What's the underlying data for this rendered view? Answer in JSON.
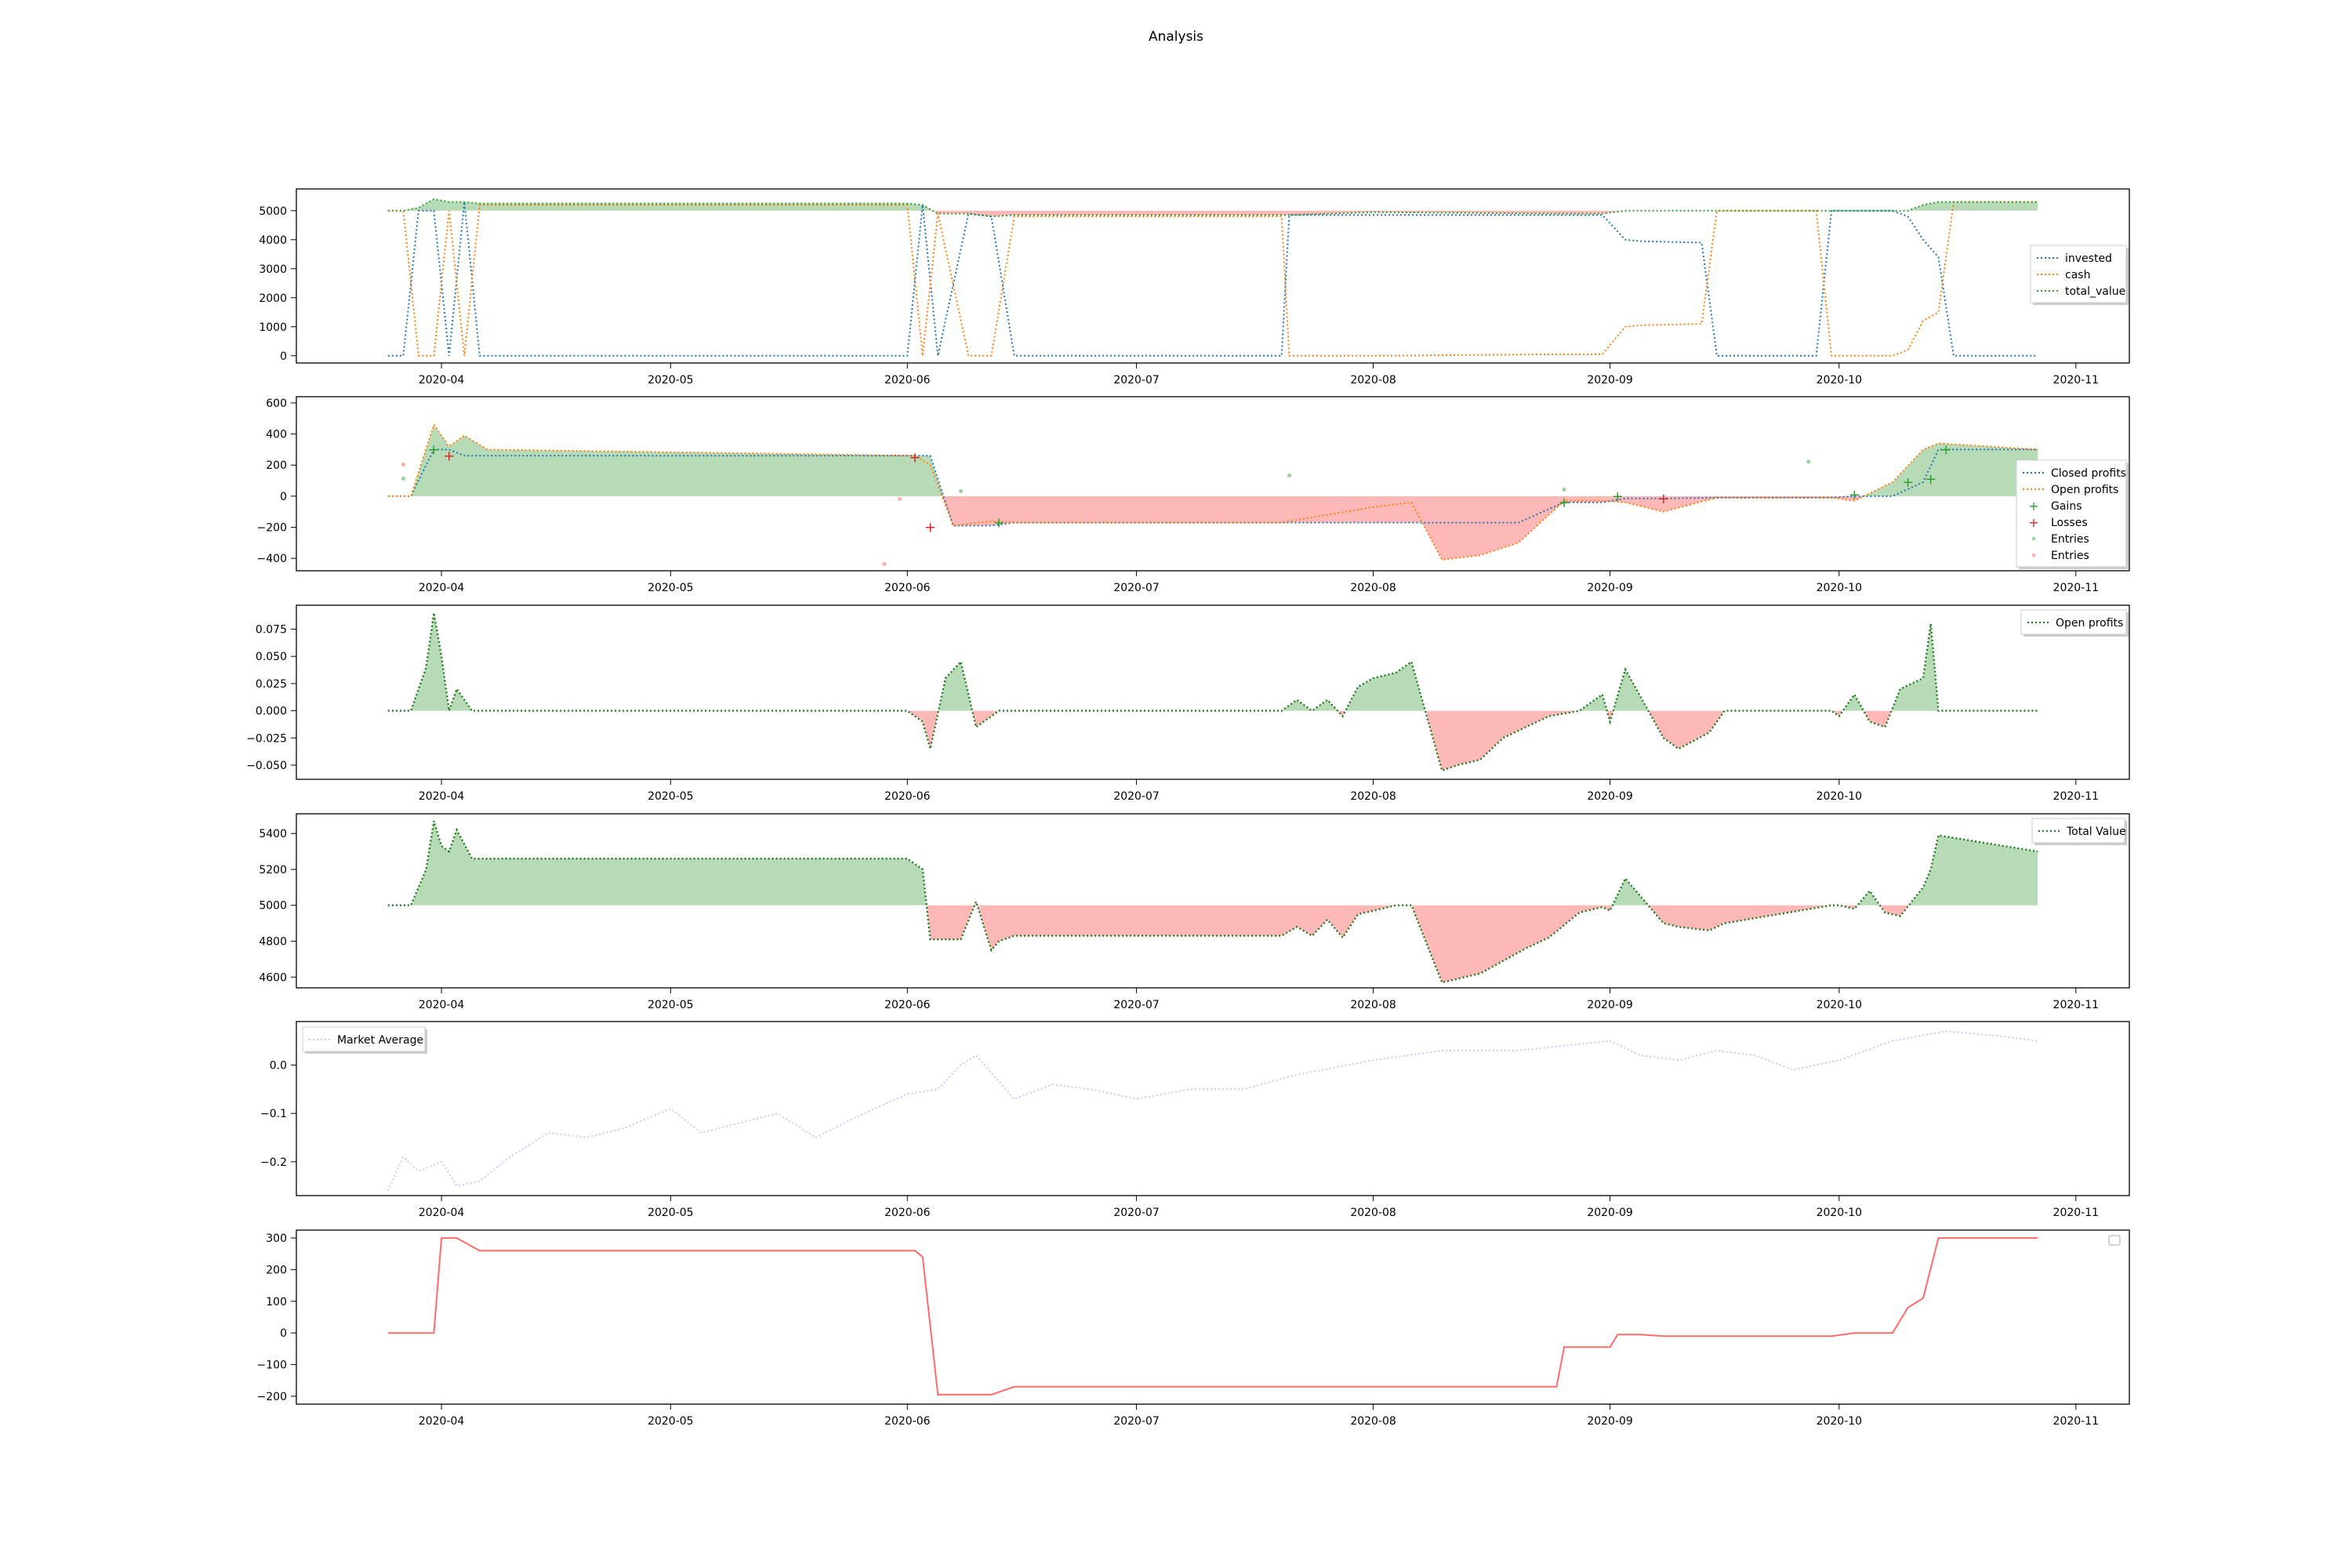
{
  "figure": {
    "title": "Analysis"
  },
  "x_ticks": [
    "2020-04",
    "2020-05",
    "2020-06",
    "2020-07",
    "2020-08",
    "2020-09",
    "2020-10",
    "2020-11"
  ],
  "colors": {
    "blue": "#1f77b4",
    "orange": "#ff7f0e",
    "green": "#2ca02c",
    "red": "#d62728",
    "fill_green": "#b7dbb7",
    "fill_red": "#ffb8b8",
    "market": "#c8c8ff",
    "steps": "#ff6b6b"
  },
  "chart_data": [
    {
      "type": "line",
      "panel": 1,
      "x": [
        "2020-03-25",
        "2020-03-27",
        "2020-03-29",
        "2020-03-31",
        "2020-04-02",
        "2020-04-04",
        "2020-04-06",
        "2020-05-01",
        "2020-06-01",
        "2020-06-03",
        "2020-06-05",
        "2020-06-09",
        "2020-06-12",
        "2020-06-15",
        "2020-07-20",
        "2020-07-21",
        "2020-08-01",
        "2020-08-25",
        "2020-08-31",
        "2020-09-03",
        "2020-09-05",
        "2020-09-13",
        "2020-09-15",
        "2020-09-28",
        "2020-09-30",
        "2020-10-08",
        "2020-10-10",
        "2020-10-12",
        "2020-10-14",
        "2020-10-16",
        "2020-10-27"
      ],
      "series": [
        {
          "name": "invested",
          "values": [
            0,
            0,
            5000,
            5000,
            0,
            5300,
            0,
            0,
            0,
            5200,
            0,
            4900,
            4800,
            0,
            0,
            4850,
            4850,
            4850,
            4850,
            4000,
            3950,
            3900,
            0,
            0,
            5000,
            5000,
            4800,
            4000,
            3400,
            0,
            0
          ]
        },
        {
          "name": "cash",
          "values": [
            5000,
            5000,
            0,
            0,
            5000,
            0,
            5200,
            5200,
            5200,
            0,
            4900,
            0,
            0,
            4800,
            4800,
            0,
            0,
            50,
            50,
            1000,
            1050,
            1100,
            5000,
            5000,
            0,
            0,
            200,
            1200,
            1500,
            5300,
            5300
          ]
        },
        {
          "name": "total_value",
          "values": [
            5000,
            5000,
            5100,
            5400,
            5300,
            5300,
            5250,
            5250,
            5250,
            5200,
            4900,
            4900,
            4800,
            4850,
            4850,
            4850,
            4950,
            4900,
            4900,
            5000,
            5000,
            5000,
            5000,
            5000,
            5000,
            5000,
            5000,
            5200,
            5300,
            5300,
            5300
          ]
        }
      ],
      "ylim": [
        -250,
        5750
      ],
      "yticks": [
        0,
        1000,
        2000,
        3000,
        4000,
        5000
      ],
      "legend_position": "center-right"
    },
    {
      "type": "line",
      "panel": 2,
      "x": [
        "2020-03-25",
        "2020-03-28",
        "2020-03-31",
        "2020-04-02",
        "2020-04-04",
        "2020-04-07",
        "2020-06-02",
        "2020-06-04",
        "2020-06-07",
        "2020-06-12",
        "2020-06-15",
        "2020-07-20",
        "2020-08-01",
        "2020-08-06",
        "2020-08-10",
        "2020-08-15",
        "2020-08-20",
        "2020-08-26",
        "2020-08-31",
        "2020-09-03",
        "2020-09-08",
        "2020-09-15",
        "2020-09-30",
        "2020-10-03",
        "2020-10-08",
        "2020-10-12",
        "2020-10-14",
        "2020-10-27"
      ],
      "series": [
        {
          "name": "Closed profits",
          "values": [
            0,
            0,
            300,
            300,
            260,
            260,
            260,
            260,
            -190,
            -190,
            -170,
            -170,
            -170,
            -170,
            -170,
            -170,
            -170,
            -40,
            -40,
            -15,
            -15,
            -10,
            -10,
            0,
            0,
            90,
            300,
            300
          ]
        },
        {
          "name": "Open profits",
          "values": [
            0,
            0,
            460,
            320,
            390,
            300,
            260,
            200,
            -190,
            -160,
            -170,
            -170,
            -70,
            -40,
            -410,
            -380,
            -300,
            -30,
            -30,
            -40,
            -100,
            -10,
            -10,
            -30,
            90,
            300,
            340,
            300
          ]
        }
      ],
      "markers": [
        {
          "name": "Gains",
          "x": [
            "2020-03-31",
            "2020-06-13",
            "2020-08-26",
            "2020-09-02",
            "2020-10-03",
            "2020-10-10",
            "2020-10-13",
            "2020-10-15"
          ],
          "y": [
            300,
            -170,
            -40,
            0,
            10,
            90,
            110,
            300
          ]
        },
        {
          "name": "Losses",
          "x": [
            "2020-04-02",
            "2020-06-02",
            "2020-06-04",
            "2020-09-08"
          ],
          "y": [
            260,
            250,
            -200,
            -15
          ]
        },
        {
          "name": "Entries",
          "x": [
            "2020-03-27",
            "2020-06-08",
            "2020-07-21",
            "2020-08-26",
            "2020-09-27"
          ],
          "y": [
            110,
            30,
            130,
            40,
            220
          ]
        },
        {
          "name": "Entries",
          "x": [
            "2020-03-27",
            "2020-05-29",
            "2020-05-31"
          ],
          "y": [
            200,
            -440,
            -20
          ]
        }
      ],
      "ylim": [
        -480,
        640
      ],
      "yticks": [
        -400,
        -200,
        0,
        200,
        400,
        600
      ],
      "legend_position": "lower-right"
    },
    {
      "type": "area",
      "panel": 3,
      "x": [
        "2020-03-25",
        "2020-03-28",
        "2020-03-30",
        "2020-03-31",
        "2020-04-01",
        "2020-04-02",
        "2020-04-03",
        "2020-04-05",
        "2020-06-01",
        "2020-06-03",
        "2020-06-04",
        "2020-06-06",
        "2020-06-08",
        "2020-06-10",
        "2020-06-12",
        "2020-06-13",
        "2020-06-15",
        "2020-07-20",
        "2020-07-22",
        "2020-07-24",
        "2020-07-26",
        "2020-07-28",
        "2020-07-30",
        "2020-08-01",
        "2020-08-04",
        "2020-08-06",
        "2020-08-10",
        "2020-08-12",
        "2020-08-15",
        "2020-08-18",
        "2020-08-21",
        "2020-08-24",
        "2020-08-28",
        "2020-08-31",
        "2020-09-01",
        "2020-09-03",
        "2020-09-08",
        "2020-09-10",
        "2020-09-14",
        "2020-09-16",
        "2020-09-30",
        "2020-10-01",
        "2020-10-03",
        "2020-10-05",
        "2020-10-07",
        "2020-10-09",
        "2020-10-12",
        "2020-10-13",
        "2020-10-14",
        "2020-10-27"
      ],
      "series": [
        {
          "name": "Open profits",
          "values": [
            0,
            0,
            0.04,
            0.09,
            0.05,
            0,
            0.02,
            0,
            0,
            -0.01,
            -0.035,
            0.03,
            0.045,
            -0.015,
            -0.005,
            0,
            0,
            0,
            0.01,
            0,
            0.01,
            -0.005,
            0.022,
            0.03,
            0.035,
            0.045,
            -0.055,
            -0.05,
            -0.045,
            -0.025,
            -0.015,
            -0.005,
            0,
            0.015,
            -0.01,
            0.038,
            -0.025,
            -0.035,
            -0.02,
            0,
            0,
            -0.005,
            0.015,
            -0.01,
            -0.015,
            0.02,
            0.03,
            0.08,
            0,
            0
          ]
        }
      ],
      "ylim": [
        -0.063,
        0.097
      ],
      "yticks": [
        -0.05,
        -0.025,
        0.0,
        0.025,
        0.05,
        0.075
      ],
      "legend_position": "upper-right"
    },
    {
      "type": "area",
      "panel": 4,
      "x": [
        "2020-03-25",
        "2020-03-28",
        "2020-03-30",
        "2020-03-31",
        "2020-04-01",
        "2020-04-02",
        "2020-04-03",
        "2020-04-05",
        "2020-06-01",
        "2020-06-03",
        "2020-06-04",
        "2020-06-08",
        "2020-06-10",
        "2020-06-12",
        "2020-06-13",
        "2020-06-15",
        "2020-07-20",
        "2020-07-22",
        "2020-07-24",
        "2020-07-26",
        "2020-07-28",
        "2020-07-30",
        "2020-08-01",
        "2020-08-04",
        "2020-08-06",
        "2020-08-10",
        "2020-08-12",
        "2020-08-15",
        "2020-08-18",
        "2020-08-21",
        "2020-08-24",
        "2020-08-28",
        "2020-08-31",
        "2020-09-01",
        "2020-09-03",
        "2020-09-08",
        "2020-09-10",
        "2020-09-14",
        "2020-09-16",
        "2020-09-30",
        "2020-10-01",
        "2020-10-03",
        "2020-10-05",
        "2020-10-07",
        "2020-10-09",
        "2020-10-12",
        "2020-10-13",
        "2020-10-14",
        "2020-10-27"
      ],
      "series": [
        {
          "name": "Total Value",
          "values": [
            5000,
            5000,
            5200,
            5470,
            5330,
            5300,
            5420,
            5260,
            5260,
            5200,
            4810,
            4810,
            5020,
            4750,
            4800,
            4830,
            4830,
            4880,
            4830,
            4920,
            4820,
            4950,
            4970,
            5000,
            5000,
            4570,
            4590,
            4620,
            4690,
            4760,
            4820,
            4960,
            4990,
            4970,
            5150,
            4900,
            4880,
            4860,
            4900,
            5000,
            5000,
            4980,
            5080,
            4960,
            4940,
            5100,
            5200,
            5390,
            5300
          ]
        }
      ],
      "ylim": [
        4540,
        5510
      ],
      "yticks": [
        4600,
        4800,
        5000,
        5200,
        5400
      ],
      "legend_position": "upper-right"
    },
    {
      "type": "line",
      "panel": 5,
      "x": [
        "2020-03-25",
        "2020-03-27",
        "2020-03-29",
        "2020-04-01",
        "2020-04-03",
        "2020-04-06",
        "2020-04-10",
        "2020-04-15",
        "2020-04-20",
        "2020-04-25",
        "2020-05-01",
        "2020-05-05",
        "2020-05-10",
        "2020-05-15",
        "2020-05-20",
        "2020-05-25",
        "2020-06-01",
        "2020-06-05",
        "2020-06-08",
        "2020-06-10",
        "2020-06-15",
        "2020-06-20",
        "2020-06-25",
        "2020-07-01",
        "2020-07-08",
        "2020-07-15",
        "2020-07-22",
        "2020-08-01",
        "2020-08-10",
        "2020-08-20",
        "2020-09-01",
        "2020-09-05",
        "2020-09-10",
        "2020-09-15",
        "2020-09-20",
        "2020-09-25",
        "2020-10-01",
        "2020-10-08",
        "2020-10-15",
        "2020-10-22",
        "2020-10-27"
      ],
      "series": [
        {
          "name": "Market Average",
          "values": [
            -0.26,
            -0.19,
            -0.22,
            -0.2,
            -0.25,
            -0.24,
            -0.19,
            -0.14,
            -0.15,
            -0.13,
            -0.09,
            -0.14,
            -0.12,
            -0.1,
            -0.15,
            -0.11,
            -0.06,
            -0.05,
            0.0,
            0.02,
            -0.07,
            -0.04,
            -0.05,
            -0.07,
            -0.05,
            -0.05,
            -0.02,
            0.01,
            0.03,
            0.03,
            0.05,
            0.02,
            0.01,
            0.03,
            0.02,
            -0.01,
            0.01,
            0.05,
            0.07,
            0.06,
            0.05
          ]
        }
      ],
      "ylim": [
        -0.27,
        0.09
      ],
      "yticks": [
        -0.2,
        -0.1,
        0.0
      ],
      "legend_position": "upper-left"
    },
    {
      "type": "line",
      "panel": 6,
      "x": [
        "2020-03-25",
        "2020-03-31",
        "2020-04-01",
        "2020-04-03",
        "2020-04-06",
        "2020-06-02",
        "2020-06-03",
        "2020-06-05",
        "2020-06-12",
        "2020-06-15",
        "2020-08-25",
        "2020-08-26",
        "2020-09-01",
        "2020-09-02",
        "2020-09-05",
        "2020-09-08",
        "2020-09-30",
        "2020-10-03",
        "2020-10-08",
        "2020-10-10",
        "2020-10-12",
        "2020-10-14",
        "2020-10-15",
        "2020-10-27"
      ],
      "series": [
        {
          "name": "",
          "values": [
            0,
            0,
            300,
            300,
            260,
            260,
            240,
            -195,
            -195,
            -170,
            -170,
            -45,
            -45,
            -5,
            -5,
            -10,
            -10,
            0,
            0,
            80,
            110,
            300,
            300,
            300
          ]
        }
      ],
      "ylim": [
        -225,
        325
      ],
      "yticks": [
        -200,
        -100,
        0,
        100,
        200,
        300
      ],
      "legend_position": "upper-right"
    }
  ],
  "legends": {
    "p1": [
      "invested",
      "cash",
      "total_value"
    ],
    "p2": [
      "Closed profits",
      "Open profits",
      "Gains",
      "Losses",
      "Entries",
      "Entries"
    ],
    "p3": [
      "Open profits"
    ],
    "p4": [
      "Total Value"
    ],
    "p5": [
      "Market Average"
    ]
  }
}
